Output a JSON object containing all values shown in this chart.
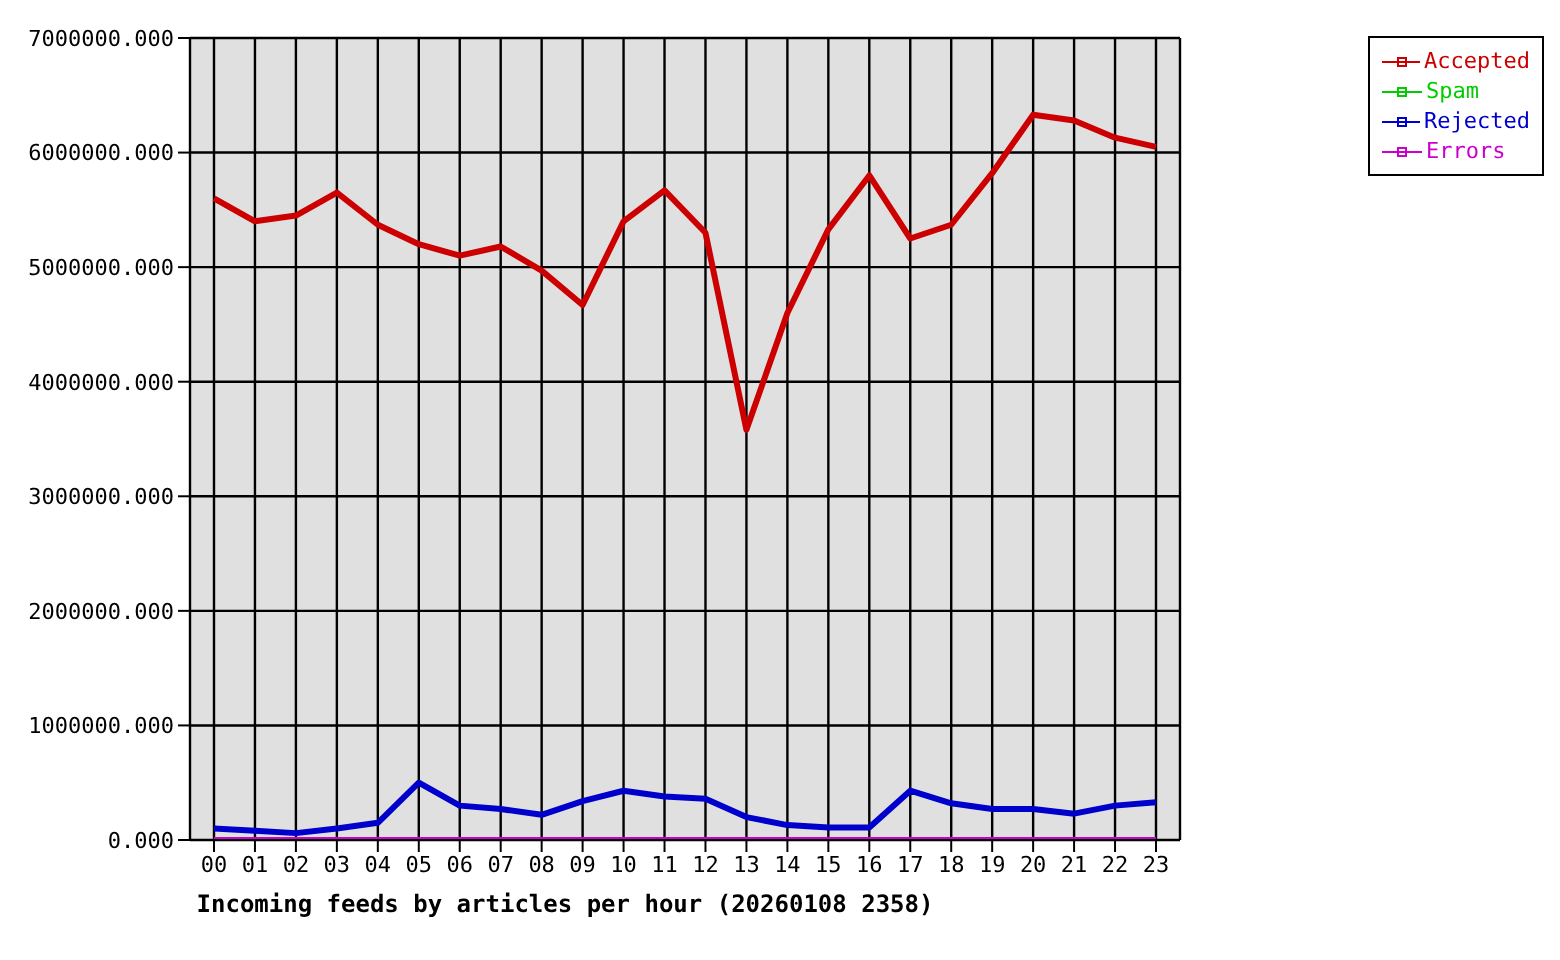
{
  "chart_data": {
    "type": "line",
    "xlabel": "Incoming feeds by articles per hour (20260108 2358)",
    "categories": [
      "00",
      "01",
      "02",
      "03",
      "04",
      "05",
      "06",
      "07",
      "08",
      "09",
      "10",
      "11",
      "12",
      "13",
      "14",
      "15",
      "16",
      "17",
      "18",
      "19",
      "20",
      "21",
      "22",
      "23"
    ],
    "series": [
      {
        "name": "Accepted",
        "color": "#cc0000",
        "values": [
          5600000,
          5400000,
          5450000,
          5650000,
          5370000,
          5200000,
          5100000,
          5180000,
          4970000,
          4670000,
          5400000,
          5670000,
          5300000,
          3580000,
          4600000,
          5330000,
          5800000,
          5250000,
          5370000,
          5820000,
          6330000,
          6280000,
          6130000,
          6050000
        ]
      },
      {
        "name": "Spam",
        "color": "#00cc00",
        "values": [
          null,
          null,
          null,
          null,
          null,
          null,
          null,
          null,
          null,
          null,
          null,
          null,
          null,
          null,
          null,
          null,
          null,
          null,
          null,
          null,
          null,
          null,
          null,
          null
        ]
      },
      {
        "name": "Rejected",
        "color": "#0000cc",
        "values": [
          100000,
          80000,
          60000,
          100000,
          150000,
          500000,
          300000,
          270000,
          220000,
          340000,
          430000,
          380000,
          360000,
          200000,
          130000,
          110000,
          110000,
          430000,
          320000,
          270000,
          270000,
          230000,
          300000,
          330000
        ]
      },
      {
        "name": "Errors",
        "color": "#cc00cc",
        "values": [
          0,
          0,
          0,
          0,
          0,
          0,
          0,
          0,
          0,
          0,
          0,
          0,
          0,
          0,
          0,
          0,
          0,
          0,
          0,
          0,
          0,
          0,
          0,
          0
        ]
      }
    ],
    "ylim": [
      0,
      7000000
    ],
    "yticks": [
      {
        "value": 0,
        "label": "0.000"
      },
      {
        "value": 1000000,
        "label": "1000000.000"
      },
      {
        "value": 2000000,
        "label": "2000000.000"
      },
      {
        "value": 3000000,
        "label": "3000000.000"
      },
      {
        "value": 4000000,
        "label": "4000000.000"
      },
      {
        "value": 5000000,
        "label": "5000000.000"
      },
      {
        "value": 6000000,
        "label": "6000000.000"
      },
      {
        "value": 7000000,
        "label": "7000000.000"
      }
    ],
    "grid": true,
    "legend": "top right"
  }
}
